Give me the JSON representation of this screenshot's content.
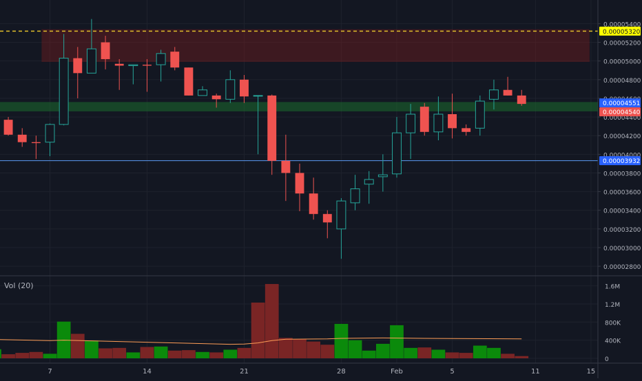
{
  "colors": {
    "background": "#131722",
    "grid": "#1e222d",
    "up": "#26a69a",
    "down": "#ef5350",
    "vol_up": "#0b8a0b",
    "vol_down": "#7a2525",
    "axis_text": "#b2b5be",
    "resistance_zone": "#8b1e1e",
    "support_zone": "#1b6b2e",
    "resistance_line": "#f5a623",
    "ma_line": "#ff9e57",
    "current_line": "#5b9cf6"
  },
  "chart_data": [
    {
      "type": "candlestick",
      "x_tick_labels": [
        {
          "label": "7",
          "day": 7
        },
        {
          "label": "14",
          "day": 14
        },
        {
          "label": "21",
          "day": 21
        },
        {
          "label": "28",
          "day": 28
        },
        {
          "label": "Feb",
          "day": 32
        },
        {
          "label": "5",
          "day": 36
        },
        {
          "label": "11",
          "day": 42
        },
        {
          "label": "15",
          "day": 46
        }
      ],
      "y_tick_labels": [
        "0.00005400",
        "0.00005200",
        "0.00005000",
        "0.00004800",
        "0.00004600",
        "0.00004400",
        "0.00004200",
        "0.00004000",
        "0.00003800",
        "0.00003600",
        "0.00003400",
        "0.00003200",
        "0.00003000",
        "0.00002800"
      ],
      "y_ticks": [
        5.4e-05,
        5.2e-05,
        5e-05,
        4.8e-05,
        4.6e-05,
        4.4e-05,
        4.2e-05,
        4e-05,
        3.8e-05,
        3.6e-05,
        3.4e-05,
        3.2e-05,
        3e-05,
        2.8e-05
      ],
      "ylim": [
        2.72e-05,
        5.58e-05
      ],
      "xlim": [
        3.4,
        46.5
      ],
      "price_labels": [
        {
          "value": 5.32e-05,
          "label": "0.00005320",
          "bg": "#ffff00",
          "fg": "#131722",
          "line": "dashed"
        },
        {
          "value": 4.551e-05,
          "label": "0.00004551",
          "bg": "#2962ff",
          "fg": "#ffffff",
          "line": "none"
        },
        {
          "value": 4.54e-05,
          "label": "0.00004540",
          "bg": "#ef5350",
          "fg": "#ffffff",
          "line": "none"
        },
        {
          "value": 3.932e-05,
          "label": "0.00003932",
          "bg": "#2962ff",
          "fg": "#ffffff",
          "line": "solid"
        }
      ],
      "zones": [
        {
          "kind": "resistance",
          "day_from": 6.4,
          "day_to": 45.9,
          "low": 4.99e-05,
          "high": 5.34e-05
        },
        {
          "kind": "support",
          "day_from": 3.4,
          "day_to": 46.5,
          "low": 4.46e-05,
          "high": 4.56e-05
        }
      ],
      "candles": [
        {
          "day": 3,
          "o": 4.2e-05,
          "h": 4.4e-05,
          "l": 3.95e-05,
          "c": 4.37e-05
        },
        {
          "day": 4,
          "o": 4.37e-05,
          "h": 4.4e-05,
          "l": 4.2e-05,
          "c": 4.21e-05
        },
        {
          "day": 5,
          "o": 4.21e-05,
          "h": 4.28e-05,
          "l": 4.08e-05,
          "c": 4.13e-05
        },
        {
          "day": 6,
          "o": 4.13e-05,
          "h": 4.2e-05,
          "l": 3.95e-05,
          "c": 4.12e-05
        },
        {
          "day": 7,
          "o": 4.13e-05,
          "h": 4.33e-05,
          "l": 3.98e-05,
          "c": 4.32e-05
        },
        {
          "day": 8,
          "o": 4.32e-05,
          "h": 5.29e-05,
          "l": 4.31e-05,
          "c": 5.03e-05
        },
        {
          "day": 9,
          "o": 5.03e-05,
          "h": 5.15e-05,
          "l": 4.6e-05,
          "c": 4.87e-05
        },
        {
          "day": 10,
          "o": 4.87e-05,
          "h": 5.45e-05,
          "l": 4.87e-05,
          "c": 5.13e-05
        },
        {
          "day": 11,
          "o": 5.2e-05,
          "h": 5.27e-05,
          "l": 4.91e-05,
          "c": 5.02e-05
        },
        {
          "day": 12,
          "o": 4.97e-05,
          "h": 5.02e-05,
          "l": 4.69e-05,
          "c": 4.95e-05
        },
        {
          "day": 13,
          "o": 4.95e-05,
          "h": 4.95e-05,
          "l": 4.75e-05,
          "c": 4.96e-05
        },
        {
          "day": 14,
          "o": 4.96e-05,
          "h": 5.02e-05,
          "l": 4.67e-05,
          "c": 4.95e-05
        },
        {
          "day": 15,
          "o": 4.96e-05,
          "h": 5.12e-05,
          "l": 4.78e-05,
          "c": 5.08e-05
        },
        {
          "day": 16,
          "o": 5.1e-05,
          "h": 5.15e-05,
          "l": 4.9e-05,
          "c": 4.93e-05
        },
        {
          "day": 17,
          "o": 4.93e-05,
          "h": 4.93e-05,
          "l": 4.63e-05,
          "c": 4.63e-05
        },
        {
          "day": 18,
          "o": 4.63e-05,
          "h": 4.73e-05,
          "l": 4.63e-05,
          "c": 4.69e-05
        },
        {
          "day": 19,
          "o": 4.63e-05,
          "h": 4.65e-05,
          "l": 4.5e-05,
          "c": 4.59e-05
        },
        {
          "day": 20,
          "o": 4.59e-05,
          "h": 4.9e-05,
          "l": 4.55e-05,
          "c": 4.8e-05
        },
        {
          "day": 21,
          "o": 4.8e-05,
          "h": 4.85e-05,
          "l": 4.55e-05,
          "c": 4.62e-05
        },
        {
          "day": 22,
          "o": 4.63e-05,
          "h": 4.63e-05,
          "l": 4e-05,
          "c": 4.63e-05
        },
        {
          "day": 23,
          "o": 4.63e-05,
          "h": 4.64e-05,
          "l": 3.78e-05,
          "c": 3.93e-05
        },
        {
          "day": 24,
          "o": 3.93e-05,
          "h": 4.21e-05,
          "l": 3.5e-05,
          "c": 3.8e-05
        },
        {
          "day": 25,
          "o": 3.8e-05,
          "h": 3.9e-05,
          "l": 3.39e-05,
          "c": 3.58e-05
        },
        {
          "day": 26,
          "o": 3.58e-05,
          "h": 3.75e-05,
          "l": 3.3e-05,
          "c": 3.36e-05
        },
        {
          "day": 27,
          "o": 3.36e-05,
          "h": 3.4e-05,
          "l": 3.1e-05,
          "c": 3.27e-05
        },
        {
          "day": 28,
          "o": 3.2e-05,
          "h": 3.53e-05,
          "l": 2.88e-05,
          "c": 3.5e-05
        },
        {
          "day": 29,
          "o": 3.48e-05,
          "h": 3.78e-05,
          "l": 3.4e-05,
          "c": 3.63e-05
        },
        {
          "day": 30,
          "o": 3.68e-05,
          "h": 3.82e-05,
          "l": 3.47e-05,
          "c": 3.73e-05
        },
        {
          "day": 31,
          "o": 3.76e-05,
          "h": 4e-05,
          "l": 3.6e-05,
          "c": 3.78e-05
        },
        {
          "day": 32,
          "o": 3.79e-05,
          "h": 4.4e-05,
          "l": 3.75e-05,
          "c": 4.23e-05
        },
        {
          "day": 33,
          "o": 4.23e-05,
          "h": 4.54e-05,
          "l": 3.95e-05,
          "c": 4.43e-05
        },
        {
          "day": 34,
          "o": 4.51e-05,
          "h": 4.55e-05,
          "l": 4.2e-05,
          "c": 4.24e-05
        },
        {
          "day": 35,
          "o": 4.24e-05,
          "h": 4.62e-05,
          "l": 4.15e-05,
          "c": 4.43e-05
        },
        {
          "day": 36,
          "o": 4.43e-05,
          "h": 4.65e-05,
          "l": 4.17e-05,
          "c": 4.28e-05
        },
        {
          "day": 37,
          "o": 4.28e-05,
          "h": 4.32e-05,
          "l": 4.2e-05,
          "c": 4.24e-05
        },
        {
          "day": 38,
          "o": 4.28e-05,
          "h": 4.63e-05,
          "l": 4.2e-05,
          "c": 4.57e-05
        },
        {
          "day": 39,
          "o": 4.59e-05,
          "h": 4.8e-05,
          "l": 4.48e-05,
          "c": 4.69e-05
        },
        {
          "day": 40,
          "o": 4.69e-05,
          "h": 4.83e-05,
          "l": 4.63e-05,
          "c": 4.63e-05
        },
        {
          "day": 41,
          "o": 4.63e-05,
          "h": 4.69e-05,
          "l": 4.52e-05,
          "c": 4.54e-05
        }
      ]
    },
    {
      "type": "bar",
      "title": "Vol (20)",
      "ylim": [
        0,
        1700000
      ],
      "y_ticks": [
        0,
        400000,
        800000,
        1200000,
        1600000
      ],
      "y_tick_labels": [
        "0",
        "400K",
        "800K",
        "1.2M",
        "1.6M"
      ],
      "volumes": [
        {
          "day": 3,
          "v": 200000,
          "dir": "up"
        },
        {
          "day": 4,
          "v": 90000,
          "dir": "down"
        },
        {
          "day": 5,
          "v": 120000,
          "dir": "down"
        },
        {
          "day": 6,
          "v": 140000,
          "dir": "down"
        },
        {
          "day": 7,
          "v": 100000,
          "dir": "up"
        },
        {
          "day": 8,
          "v": 810000,
          "dir": "up"
        },
        {
          "day": 9,
          "v": 540000,
          "dir": "down"
        },
        {
          "day": 10,
          "v": 390000,
          "dir": "up"
        },
        {
          "day": 11,
          "v": 220000,
          "dir": "down"
        },
        {
          "day": 12,
          "v": 230000,
          "dir": "down"
        },
        {
          "day": 13,
          "v": 130000,
          "dir": "up"
        },
        {
          "day": 14,
          "v": 250000,
          "dir": "down"
        },
        {
          "day": 15,
          "v": 260000,
          "dir": "up"
        },
        {
          "day": 16,
          "v": 170000,
          "dir": "down"
        },
        {
          "day": 17,
          "v": 180000,
          "dir": "down"
        },
        {
          "day": 18,
          "v": 140000,
          "dir": "up"
        },
        {
          "day": 19,
          "v": 130000,
          "dir": "down"
        },
        {
          "day": 20,
          "v": 190000,
          "dir": "up"
        },
        {
          "day": 21,
          "v": 230000,
          "dir": "down"
        },
        {
          "day": 22,
          "v": 1230000,
          "dir": "down"
        },
        {
          "day": 23,
          "v": 1640000,
          "dir": "down"
        },
        {
          "day": 24,
          "v": 450000,
          "dir": "down"
        },
        {
          "day": 25,
          "v": 420000,
          "dir": "down"
        },
        {
          "day": 26,
          "v": 370000,
          "dir": "down"
        },
        {
          "day": 27,
          "v": 300000,
          "dir": "down"
        },
        {
          "day": 28,
          "v": 760000,
          "dir": "up"
        },
        {
          "day": 29,
          "v": 400000,
          "dir": "up"
        },
        {
          "day": 30,
          "v": 170000,
          "dir": "up"
        },
        {
          "day": 31,
          "v": 320000,
          "dir": "up"
        },
        {
          "day": 32,
          "v": 730000,
          "dir": "up"
        },
        {
          "day": 33,
          "v": 230000,
          "dir": "up"
        },
        {
          "day": 34,
          "v": 240000,
          "dir": "down"
        },
        {
          "day": 35,
          "v": 190000,
          "dir": "up"
        },
        {
          "day": 36,
          "v": 130000,
          "dir": "down"
        },
        {
          "day": 37,
          "v": 120000,
          "dir": "down"
        },
        {
          "day": 38,
          "v": 280000,
          "dir": "up"
        },
        {
          "day": 39,
          "v": 230000,
          "dir": "up"
        },
        {
          "day": 40,
          "v": 100000,
          "dir": "down"
        },
        {
          "day": 41,
          "v": 50000,
          "dir": "down"
        }
      ],
      "ma": [
        {
          "day": 2.4,
          "v": 420000
        },
        {
          "day": 7,
          "v": 390000
        },
        {
          "day": 8,
          "v": 400000
        },
        {
          "day": 12,
          "v": 370000
        },
        {
          "day": 16,
          "v": 340000
        },
        {
          "day": 20,
          "v": 310000
        },
        {
          "day": 21,
          "v": 315000
        },
        {
          "day": 22,
          "v": 340000
        },
        {
          "day": 23,
          "v": 390000
        },
        {
          "day": 24,
          "v": 420000
        },
        {
          "day": 27,
          "v": 430000
        },
        {
          "day": 28,
          "v": 440000
        },
        {
          "day": 31,
          "v": 450000
        },
        {
          "day": 34,
          "v": 440000
        },
        {
          "day": 41,
          "v": 430000
        }
      ]
    }
  ]
}
